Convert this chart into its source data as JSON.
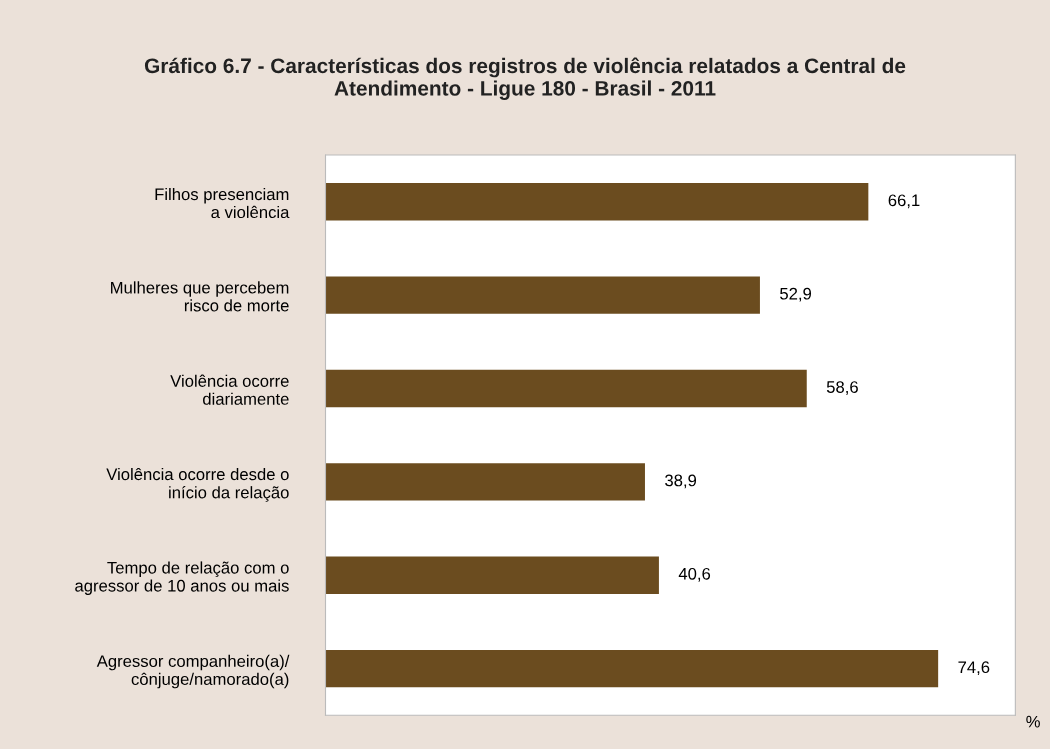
{
  "chart_data": {
    "type": "bar",
    "orientation": "horizontal",
    "title": "Gráfico 6.7 - Características dos registros de violência relatados a Central de\nAtendimento - Ligue 180 - Brasil - 2011",
    "categories": [
      "Filhos presenciam\na violência",
      "Mulheres que percebem\nrisco de morte",
      "Violência ocorre\ndiariamente",
      "Violência ocorre desde o\ninício da relação",
      "Tempo de relação com o\nagressor de 10 anos ou mais",
      "Agressor companheiro(a)/\ncônjuge/namorado(a)"
    ],
    "values": [
      66.1,
      52.9,
      58.6,
      38.9,
      40.6,
      74.6
    ],
    "value_labels": [
      "66,1",
      "52,9",
      "58,6",
      "38,9",
      "40,6",
      "74,6"
    ],
    "color": "#6b4c1f",
    "xlabel": "%",
    "xlim": [
      0,
      84
    ],
    "tick_labels": "y",
    "grid": false,
    "legend": false
  }
}
